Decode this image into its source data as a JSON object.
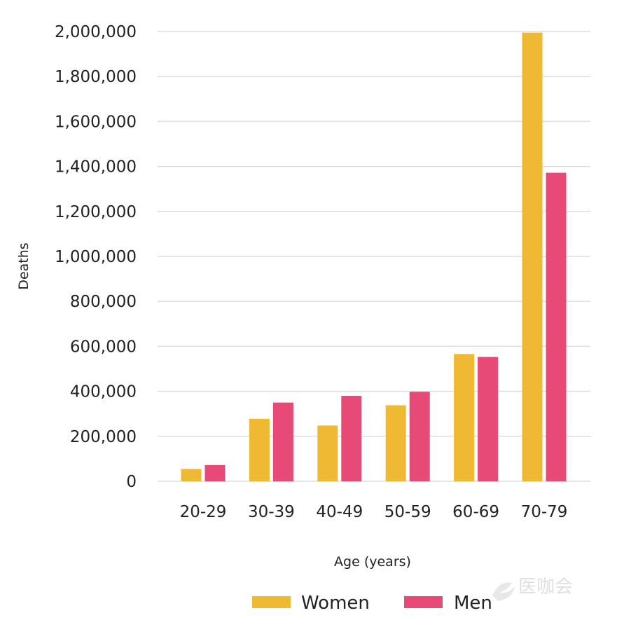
{
  "chart_data": {
    "type": "bar",
    "title": "",
    "xlabel": "Age (years)",
    "ylabel": "Deaths",
    "categories": [
      "20-29",
      "30-39",
      "40-49",
      "50-59",
      "60-69",
      "70-79"
    ],
    "series": [
      {
        "name": "Women",
        "color": "#f0b934",
        "values": [
          55000,
          278000,
          248000,
          338000,
          566000,
          1995000
        ]
      },
      {
        "name": "Men",
        "color": "#e84a78",
        "values": [
          72000,
          350000,
          380000,
          398000,
          553000,
          1372000
        ]
      }
    ],
    "ylim": [
      0,
      2000000
    ],
    "yticks": [
      0,
      200000,
      400000,
      600000,
      800000,
      1000000,
      1200000,
      1400000,
      1600000,
      1800000,
      2000000
    ],
    "ytick_labels": [
      "0",
      "200,000",
      "400,000",
      "600,000",
      "800,000",
      "1,000,000",
      "1,200,000",
      "1,400,000",
      "1,600,000",
      "1,800,000",
      "2,000,000"
    ],
    "grid": true,
    "legend_position": "bottom-center"
  },
  "watermark": {
    "text": "医咖会"
  }
}
